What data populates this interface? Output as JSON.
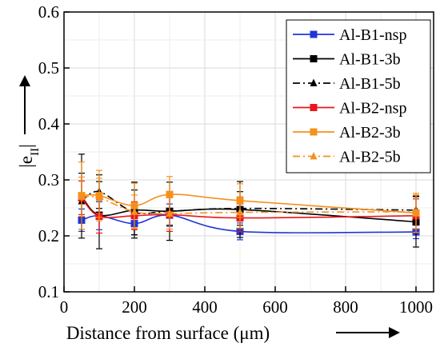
{
  "chart_data": {
    "type": "line",
    "xlabel": "Distance from surface (μm)",
    "ylabel": "|e",
    "ylabel_sub": "II",
    "ylabel_end": "|",
    "xlim": [
      0,
      1050
    ],
    "ylim": [
      0.1,
      0.6
    ],
    "x_ticks": [
      0,
      200,
      400,
      600,
      800,
      1000
    ],
    "y_ticks": [
      0.1,
      0.2,
      0.3,
      0.4,
      0.5,
      0.6
    ],
    "x_tick_labels": [
      "0",
      "200",
      "400",
      "600",
      "800",
      "1000"
    ],
    "y_tick_labels": [
      "0.1",
      "0.2",
      "0.3",
      "0.4",
      "0.5",
      "0.6"
    ],
    "grid": true,
    "legend_position": "top-right",
    "x": [
      50,
      100,
      200,
      300,
      500,
      1000
    ],
    "series": [
      {
        "name": "Al-B1-nsp",
        "color": "#1f35d8",
        "marker": "square",
        "dash": "solid",
        "values": [
          0.228,
          0.236,
          0.222,
          0.237,
          0.208,
          0.207
        ],
        "errors": [
          0.02,
          0.025,
          0.02,
          0.02,
          0.015,
          0.012
        ]
      },
      {
        "name": "Al-B1-3b",
        "color": "#000000",
        "marker": "square",
        "dash": "solid",
        "values": [
          0.271,
          0.237,
          0.246,
          0.244,
          0.247,
          0.225
        ],
        "errors": [
          0.075,
          0.06,
          0.05,
          0.052,
          0.05,
          0.045
        ]
      },
      {
        "name": "Al-B1-5b",
        "color": "#000000",
        "marker": "triangle",
        "dash": "dashdot",
        "values": [
          0.262,
          0.279,
          0.242,
          0.244,
          0.249,
          0.246
        ],
        "errors": [
          0.05,
          0.03,
          0.04,
          0.025,
          0.03,
          0.025
        ]
      },
      {
        "name": "Al-B2-nsp",
        "color": "#e8161b",
        "marker": "square",
        "dash": "solid",
        "values": [
          0.268,
          0.235,
          0.236,
          0.238,
          0.232,
          0.236
        ],
        "errors": [
          0.03,
          0.03,
          0.025,
          0.03,
          0.025,
          0.03
        ]
      },
      {
        "name": "Al-B2-3b",
        "color": "#f5901e",
        "marker": "square",
        "dash": "solid",
        "values": [
          0.272,
          0.272,
          0.254,
          0.274,
          0.263,
          0.241
        ],
        "errors": [
          0.06,
          0.045,
          0.04,
          0.032,
          0.03,
          0.035
        ]
      },
      {
        "name": "Al-B2-5b",
        "color": "#f5901e",
        "marker": "triangle",
        "dash": "dashdot",
        "values": [
          0.27,
          0.268,
          0.243,
          0.24,
          0.242,
          0.243
        ],
        "errors": [
          0.035,
          0.035,
          0.03,
          0.028,
          0.028,
          0.03
        ]
      }
    ]
  }
}
